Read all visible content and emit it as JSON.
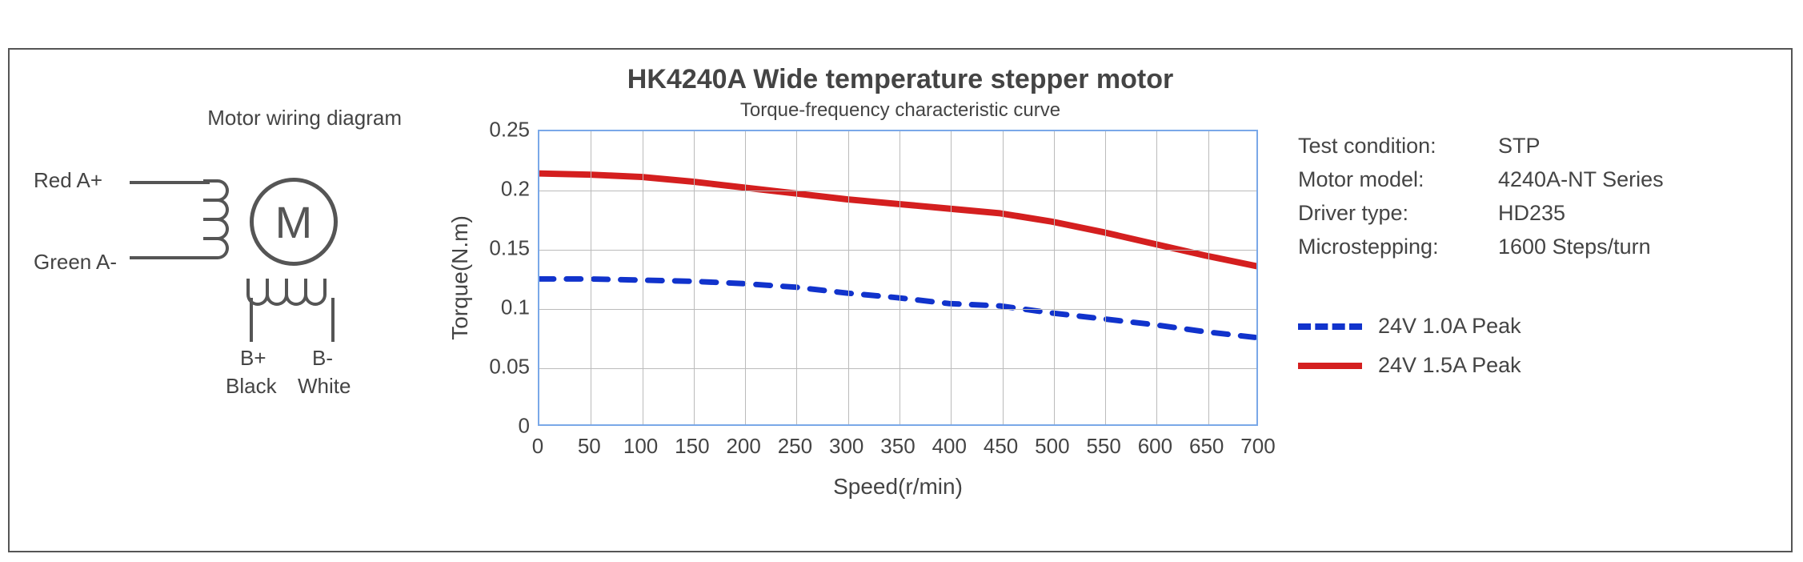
{
  "titles": {
    "main": "HK4240A Wide temperature stepper motor",
    "sub": "Torque-frequency characteristic curve"
  },
  "wiring": {
    "heading": "Motor wiring diagram",
    "motor_letter": "M",
    "a_plus": "Red  A+",
    "a_minus": "Green  A-",
    "b_plus_pin": "B+",
    "b_plus_color": "Black",
    "b_minus_pin": "B-",
    "b_minus_color": "White"
  },
  "chart": {
    "type": "line",
    "xlabel": "Speed(r/min)",
    "ylabel": "Torque(N.m)",
    "xlim": [
      0,
      700
    ],
    "ylim": [
      0,
      0.25
    ],
    "xtick_step": 50,
    "ytick_step": 0.05,
    "xticks": [
      "0",
      "50",
      "100",
      "150",
      "200",
      "250",
      "300",
      "350",
      "400",
      "450",
      "500",
      "550",
      "600",
      "650",
      "700"
    ],
    "yticks": [
      "0",
      "0.05",
      "0.1",
      "0.15",
      "0.2",
      "0.25"
    ],
    "axis_color": "#7aa8e8",
    "grid_color": "#bbbbbb",
    "background_color": "#ffffff",
    "tick_fontsize": 26,
    "label_fontsize": 28,
    "series": [
      {
        "name": "24V 1.0A Peak",
        "color": "#1133cc",
        "line_width": 7,
        "dash": "18 16",
        "x": [
          0,
          50,
          100,
          150,
          200,
          250,
          300,
          350,
          400,
          450,
          500,
          550,
          600,
          650,
          700
        ],
        "y": [
          0.124,
          0.124,
          0.123,
          0.122,
          0.12,
          0.117,
          0.112,
          0.108,
          0.103,
          0.101,
          0.095,
          0.09,
          0.085,
          0.079,
          0.074
        ]
      },
      {
        "name": "24V 1.5A Peak",
        "color": "#d41f1f",
        "line_width": 8,
        "dash": "",
        "x": [
          0,
          50,
          100,
          150,
          200,
          250,
          300,
          350,
          400,
          450,
          500,
          550,
          600,
          650,
          700
        ],
        "y": [
          0.214,
          0.213,
          0.211,
          0.207,
          0.202,
          0.197,
          0.192,
          0.188,
          0.184,
          0.18,
          0.173,
          0.164,
          0.154,
          0.144,
          0.135
        ]
      }
    ]
  },
  "info": {
    "rows": [
      {
        "k": "Test condition:",
        "v": "STP"
      },
      {
        "k": "Motor model:",
        "v": "4240A-NT Series"
      },
      {
        "k": "Driver type:",
        "v": "HD235"
      },
      {
        "k": "Microstepping:",
        "v": "1600 Steps/turn"
      }
    ]
  },
  "legend": {
    "items": [
      {
        "label": "24V 1.0A Peak",
        "color": "#1133cc",
        "style": "dashed"
      },
      {
        "label": "24V 1.5A Peak",
        "color": "#d41f1f",
        "style": "solid"
      }
    ]
  }
}
